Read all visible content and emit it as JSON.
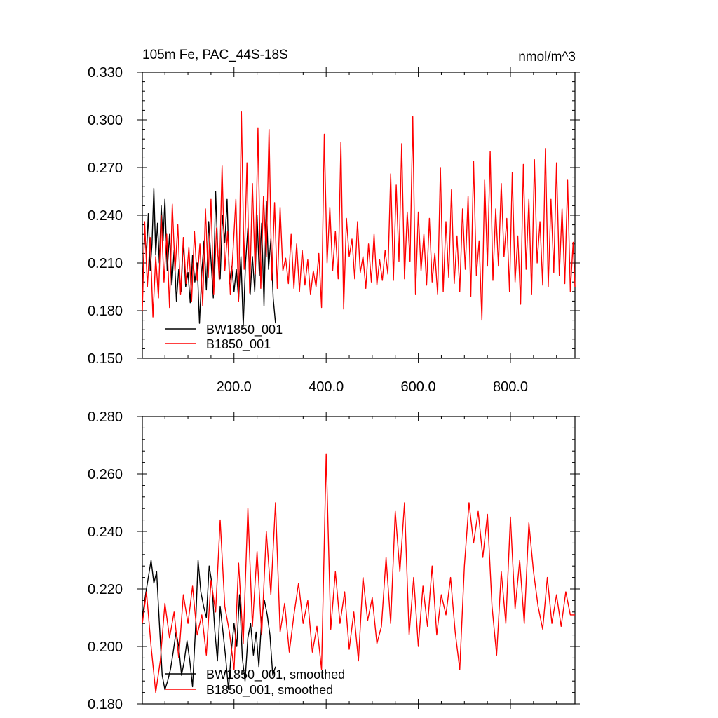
{
  "chart_data": [
    {
      "type": "line",
      "title": "105m Fe, PAC_44S-18S",
      "units": "nmol/m^3",
      "xlim": [
        1,
        940
      ],
      "ylim": [
        0.15,
        0.33
      ],
      "xticks": [
        200,
        400,
        600,
        800
      ],
      "xtick_labels": [
        "200.0",
        "400.0",
        "600.0",
        "800.0"
      ],
      "yticks": [
        0.15,
        0.18,
        0.21,
        0.24,
        0.27,
        0.3,
        0.33
      ],
      "ytick_labels": [
        "0.150",
        "0.180",
        "0.210",
        "0.240",
        "0.270",
        "0.300",
        "0.330"
      ],
      "legend": "bottom-left",
      "series": [
        {
          "name": "BW1850_001",
          "color": "#000000",
          "x": [
            1,
            6,
            10,
            14,
            18,
            22,
            26,
            30,
            34,
            38,
            42,
            46,
            50,
            55,
            60,
            65,
            70,
            75,
            80,
            85,
            90,
            95,
            100,
            105,
            110,
            115,
            120,
            125,
            130,
            135,
            140,
            145,
            150,
            155,
            160,
            165,
            170,
            175,
            180,
            185,
            190,
            195,
            200,
            205,
            210,
            215,
            220,
            225,
            230,
            235,
            240,
            245,
            250,
            255,
            260,
            265,
            270,
            275,
            280,
            285,
            290
          ],
          "values": [
            0.19,
            0.23,
            0.215,
            0.241,
            0.205,
            0.222,
            0.257,
            0.215,
            0.235,
            0.21,
            0.246,
            0.224,
            0.25,
            0.205,
            0.228,
            0.196,
            0.218,
            0.186,
            0.206,
            0.192,
            0.224,
            0.195,
            0.204,
            0.185,
            0.215,
            0.198,
            0.21,
            0.172,
            0.204,
            0.224,
            0.193,
            0.236,
            0.212,
            0.188,
            0.255,
            0.215,
            0.2,
            0.24,
            0.223,
            0.25,
            0.197,
            0.208,
            0.192,
            0.206,
            0.187,
            0.214,
            0.17,
            0.21,
            0.232,
            0.19,
            0.214,
            0.192,
            0.24,
            0.202,
            0.235,
            0.183,
            0.249,
            0.206,
            0.225,
            0.188,
            0.172
          ]
        },
        {
          "name": "B1850_001",
          "color": "#ff0000",
          "x": [
            1,
            6,
            12,
            18,
            24,
            30,
            36,
            42,
            48,
            54,
            60,
            66,
            72,
            78,
            84,
            90,
            96,
            102,
            108,
            114,
            120,
            126,
            132,
            138,
            144,
            150,
            156,
            162,
            168,
            174,
            180,
            186,
            192,
            198,
            204,
            210,
            216,
            222,
            228,
            234,
            240,
            246,
            252,
            258,
            264,
            270,
            276,
            282,
            288,
            294,
            300,
            306,
            312,
            318,
            324,
            330,
            336,
            342,
            348,
            354,
            360,
            366,
            372,
            378,
            384,
            390,
            396,
            402,
            408,
            414,
            420,
            426,
            432,
            438,
            444,
            450,
            456,
            462,
            468,
            474,
            480,
            486,
            492,
            498,
            504,
            510,
            516,
            522,
            528,
            534,
            540,
            546,
            552,
            558,
            564,
            570,
            576,
            582,
            588,
            594,
            600,
            606,
            612,
            618,
            624,
            630,
            636,
            642,
            648,
            654,
            660,
            666,
            672,
            678,
            684,
            690,
            696,
            702,
            708,
            714,
            720,
            726,
            732,
            738,
            744,
            750,
            756,
            762,
            768,
            774,
            780,
            786,
            792,
            798,
            804,
            810,
            816,
            822,
            828,
            834,
            840,
            846,
            852,
            858,
            864,
            870,
            876,
            882,
            888,
            894,
            900,
            906,
            912,
            918,
            924,
            930,
            936,
            940
          ],
          "values": [
            0.18,
            0.236,
            0.195,
            0.226,
            0.176,
            0.214,
            0.188,
            0.24,
            0.198,
            0.228,
            0.182,
            0.247,
            0.205,
            0.234,
            0.19,
            0.226,
            0.197,
            0.22,
            0.186,
            0.23,
            0.199,
            0.222,
            0.183,
            0.244,
            0.201,
            0.25,
            0.19,
            0.232,
            0.199,
            0.271,
            0.205,
            0.23,
            0.19,
            0.218,
            0.25,
            0.186,
            0.305,
            0.206,
            0.273,
            0.191,
            0.26,
            0.203,
            0.295,
            0.194,
            0.252,
            0.214,
            0.294,
            0.199,
            0.248,
            0.194,
            0.245,
            0.205,
            0.213,
            0.197,
            0.228,
            0.194,
            0.222,
            0.192,
            0.218,
            0.196,
            0.212,
            0.19,
            0.205,
            0.195,
            0.216,
            0.182,
            0.291,
            0.21,
            0.245,
            0.205,
            0.23,
            0.2,
            0.286,
            0.181,
            0.238,
            0.214,
            0.225,
            0.2,
            0.236,
            0.204,
            0.214,
            0.194,
            0.222,
            0.198,
            0.228,
            0.196,
            0.212,
            0.199,
            0.218,
            0.203,
            0.266,
            0.199,
            0.259,
            0.211,
            0.285,
            0.2,
            0.242,
            0.211,
            0.302,
            0.19,
            0.242,
            0.205,
            0.228,
            0.196,
            0.238,
            0.198,
            0.216,
            0.19,
            0.27,
            0.192,
            0.236,
            0.201,
            0.256,
            0.197,
            0.227,
            0.192,
            0.244,
            0.206,
            0.252,
            0.189,
            0.274,
            0.202,
            0.224,
            0.174,
            0.262,
            0.208,
            0.28,
            0.199,
            0.244,
            0.208,
            0.26,
            0.214,
            0.238,
            0.192,
            0.267,
            0.198,
            0.227,
            0.184,
            0.272,
            0.206,
            0.25,
            0.19,
            0.275,
            0.21,
            0.236,
            0.196,
            0.282,
            0.195,
            0.25,
            0.204,
            0.273,
            0.202,
            0.244,
            0.197,
            0.262,
            0.192,
            0.223,
            0.195
          ]
        }
      ]
    },
    {
      "type": "line",
      "xlim": [
        1,
        940
      ],
      "ylim": [
        0.18,
        0.28
      ],
      "xticks": [
        200,
        400,
        600,
        800
      ],
      "yticks": [
        0.18,
        0.2,
        0.22,
        0.24,
        0.26,
        0.28
      ],
      "ytick_labels": [
        "0.180",
        "0.200",
        "0.220",
        "0.240",
        "0.260",
        "0.280"
      ],
      "legend": "bottom-left",
      "series": [
        {
          "name": "BW1850_001, smoothed",
          "color": "#000000",
          "x": [
            1,
            8,
            14,
            20,
            26,
            32,
            38,
            44,
            50,
            56,
            62,
            68,
            74,
            80,
            86,
            92,
            98,
            104,
            110,
            116,
            122,
            128,
            134,
            140,
            146,
            152,
            158,
            164,
            170,
            176,
            182,
            188,
            194,
            200,
            206,
            212,
            218,
            224,
            230,
            236,
            242,
            248,
            254,
            260,
            266,
            272,
            278,
            284,
            290
          ],
          "values": [
            0.21,
            0.218,
            0.224,
            0.23,
            0.222,
            0.226,
            0.208,
            0.19,
            0.185,
            0.188,
            0.192,
            0.198,
            0.205,
            0.2,
            0.19,
            0.195,
            0.202,
            0.195,
            0.186,
            0.205,
            0.23,
            0.219,
            0.214,
            0.21,
            0.228,
            0.222,
            0.206,
            0.195,
            0.214,
            0.205,
            0.196,
            0.185,
            0.198,
            0.208,
            0.2,
            0.218,
            0.196,
            0.188,
            0.203,
            0.208,
            0.197,
            0.205,
            0.193,
            0.21,
            0.216,
            0.211,
            0.204,
            0.19,
            0.193
          ]
        },
        {
          "name": "B1850_001, smoothed",
          "color": "#ff0000",
          "x": [
            1,
            10,
            20,
            30,
            40,
            50,
            60,
            70,
            80,
            90,
            100,
            110,
            120,
            130,
            140,
            150,
            160,
            170,
            180,
            190,
            200,
            210,
            220,
            230,
            240,
            250,
            260,
            270,
            280,
            290,
            300,
            310,
            320,
            330,
            340,
            350,
            360,
            370,
            380,
            390,
            400,
            410,
            420,
            430,
            440,
            450,
            460,
            470,
            480,
            490,
            500,
            510,
            520,
            530,
            540,
            550,
            560,
            570,
            580,
            590,
            600,
            610,
            620,
            630,
            640,
            650,
            660,
            670,
            680,
            690,
            700,
            710,
            720,
            730,
            740,
            750,
            760,
            770,
            780,
            790,
            800,
            810,
            820,
            830,
            840,
            850,
            860,
            870,
            880,
            890,
            900,
            910,
            920,
            930,
            940
          ],
          "values": [
            0.208,
            0.219,
            0.2,
            0.184,
            0.195,
            0.215,
            0.203,
            0.212,
            0.196,
            0.218,
            0.208,
            0.221,
            0.204,
            0.211,
            0.197,
            0.223,
            0.212,
            0.244,
            0.214,
            0.205,
            0.192,
            0.229,
            0.201,
            0.248,
            0.207,
            0.233,
            0.204,
            0.24,
            0.218,
            0.25,
            0.205,
            0.215,
            0.198,
            0.211,
            0.222,
            0.208,
            0.216,
            0.198,
            0.207,
            0.192,
            0.267,
            0.206,
            0.226,
            0.208,
            0.219,
            0.199,
            0.212,
            0.195,
            0.224,
            0.209,
            0.217,
            0.201,
            0.207,
            0.231,
            0.208,
            0.247,
            0.226,
            0.25,
            0.204,
            0.224,
            0.2,
            0.221,
            0.207,
            0.228,
            0.204,
            0.218,
            0.211,
            0.224,
            0.205,
            0.192,
            0.228,
            0.25,
            0.236,
            0.247,
            0.231,
            0.246,
            0.214,
            0.197,
            0.226,
            0.208,
            0.245,
            0.213,
            0.23,
            0.208,
            0.243,
            0.226,
            0.214,
            0.206,
            0.224,
            0.208,
            0.218,
            0.207,
            0.219,
            0.211,
            0.211
          ]
        }
      ]
    }
  ]
}
